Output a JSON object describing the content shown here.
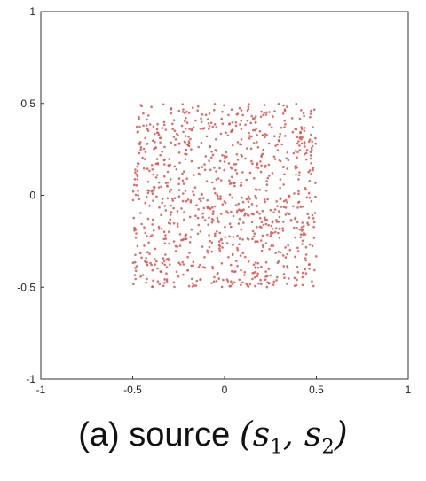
{
  "chart_data": {
    "type": "scatter",
    "title": "",
    "xlabel": "",
    "ylabel": "",
    "xlim": [
      -1,
      1
    ],
    "ylim": [
      -1,
      1
    ],
    "x_ticks": [
      "-1",
      "-0.5",
      "0",
      "0.5",
      "1"
    ],
    "y_ticks": [
      "1",
      "0.5",
      "0",
      "-0.5",
      "-1"
    ],
    "grid": false,
    "legend": "none",
    "point_color": "#d9534f",
    "distribution": "uniform on square",
    "support": {
      "x": [
        -0.5,
        0.5
      ],
      "y": [
        -0.5,
        0.5
      ]
    },
    "approx_point_count": 1000
  },
  "caption": {
    "prefix": "(a) source ",
    "math_open": "(",
    "var1": "s",
    "sub1": "1",
    "sep": ", ",
    "var2": "s",
    "sub2": "2",
    "math_close": ")"
  }
}
